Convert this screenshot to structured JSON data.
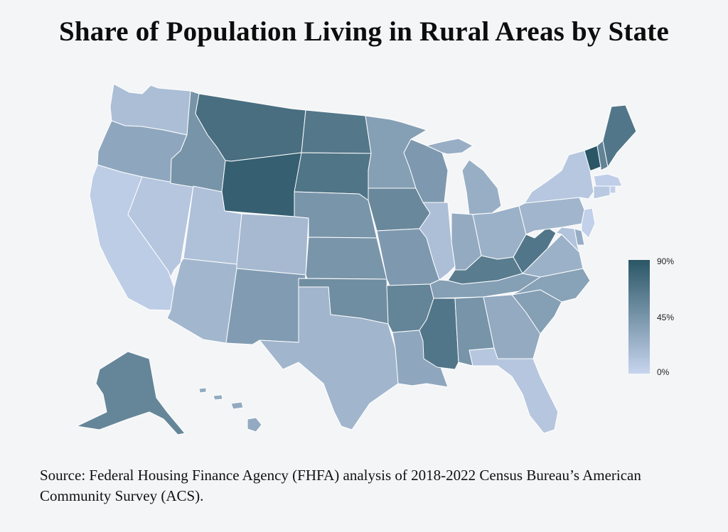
{
  "title": "Share of Population Living in Rural Areas by State",
  "source": "Source: Federal Housing Finance Agency (FHFA) analysis of 2018-2022 Census Bureau’s American Community Survey (ACS).",
  "legend": {
    "max_label": "90%",
    "mid_label": "45%",
    "min_label": "0%",
    "color_low": "#c7d4ee",
    "color_high": "#2a5666"
  },
  "colors": {
    "background": "#f4f5f7",
    "state_border": "#ffffff"
  },
  "states": [
    {
      "id": "WA",
      "value": 16
    },
    {
      "id": "OR",
      "value": 32
    },
    {
      "id": "CA",
      "value": 5
    },
    {
      "id": "NV",
      "value": 10
    },
    {
      "id": "ID",
      "value": 46
    },
    {
      "id": "MT",
      "value": 73
    },
    {
      "id": "WY",
      "value": 83
    },
    {
      "id": "UT",
      "value": 14
    },
    {
      "id": "CO",
      "value": 19
    },
    {
      "id": "AZ",
      "value": 21
    },
    {
      "id": "NM",
      "value": 40
    },
    {
      "id": "ND",
      "value": 66
    },
    {
      "id": "SD",
      "value": 68
    },
    {
      "id": "NE",
      "value": 45
    },
    {
      "id": "KS",
      "value": 45
    },
    {
      "id": "OK",
      "value": 50
    },
    {
      "id": "TX",
      "value": 22
    },
    {
      "id": "MN",
      "value": 38
    },
    {
      "id": "IA",
      "value": 54
    },
    {
      "id": "MO",
      "value": 42
    },
    {
      "id": "AR",
      "value": 57
    },
    {
      "id": "LA",
      "value": 32
    },
    {
      "id": "WI",
      "value": 42
    },
    {
      "id": "IL",
      "value": 15
    },
    {
      "id": "MI",
      "value": 27
    },
    {
      "id": "IN",
      "value": 30
    },
    {
      "id": "OH",
      "value": 25
    },
    {
      "id": "KY",
      "value": 63
    },
    {
      "id": "TN",
      "value": 38
    },
    {
      "id": "MS",
      "value": 67
    },
    {
      "id": "AL",
      "value": 46
    },
    {
      "id": "GA",
      "value": 30
    },
    {
      "id": "FL",
      "value": 10
    },
    {
      "id": "SC",
      "value": 38
    },
    {
      "id": "NC",
      "value": 36
    },
    {
      "id": "VA",
      "value": 25
    },
    {
      "id": "WV",
      "value": 67
    },
    {
      "id": "PA",
      "value": 22
    },
    {
      "id": "NY",
      "value": 9
    },
    {
      "id": "VT",
      "value": 90
    },
    {
      "id": "NH",
      "value": 58
    },
    {
      "id": "ME",
      "value": 67
    },
    {
      "id": "MA",
      "value": 4
    },
    {
      "id": "RI",
      "value": 3
    },
    {
      "id": "CT",
      "value": 8
    },
    {
      "id": "NJ",
      "value": 3
    },
    {
      "id": "DE",
      "value": 28
    },
    {
      "id": "MD",
      "value": 12
    },
    {
      "id": "AK",
      "value": 56
    },
    {
      "id": "HI",
      "value": 30
    }
  ]
}
